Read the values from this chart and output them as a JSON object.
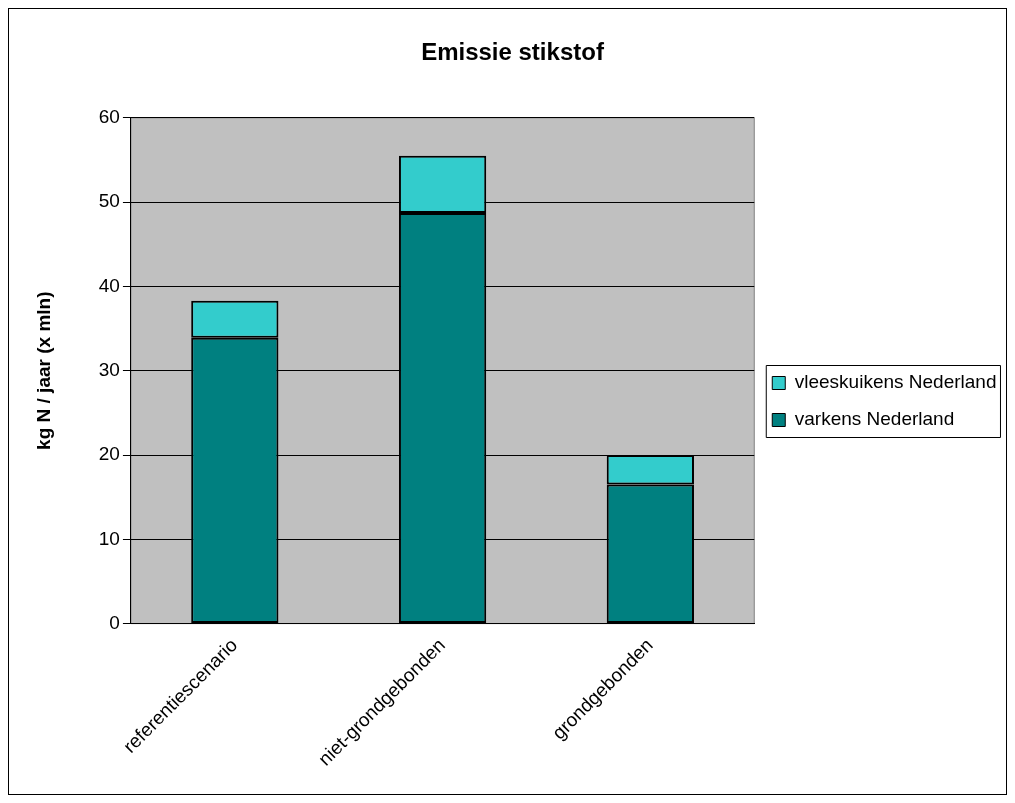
{
  "chart_data": {
    "type": "bar",
    "title": "Emissie stikstof",
    "ylabel": "kg N / jaar (x mln)",
    "categories": [
      "referentiescenario",
      "niet-grondgebonden",
      "grondgebonden"
    ],
    "series": [
      {
        "name": "varkens Nederland",
        "color": "#008080",
        "values": [
          33.9,
          48.7,
          16.5
        ]
      },
      {
        "name": "vleeskuikens Nederland",
        "color": "#33cccc",
        "values": [
          4.4,
          6.8,
          3.5
        ]
      }
    ],
    "stacked": true,
    "ylim": [
      0,
      60
    ],
    "yticks": [
      0,
      10,
      20,
      30,
      40,
      50,
      60
    ],
    "grid": "y",
    "legend": "right"
  }
}
